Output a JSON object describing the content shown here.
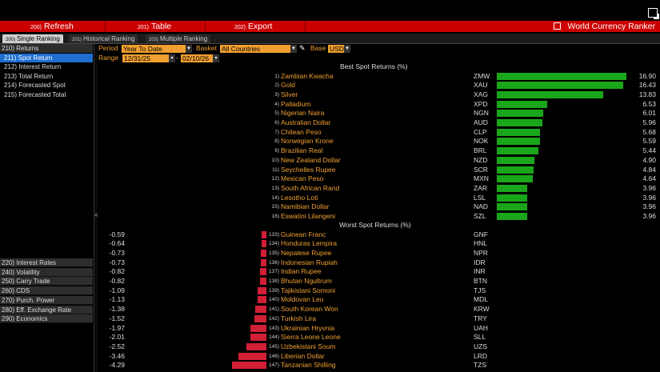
{
  "toolbar": {
    "refresh": {
      "num": "200)",
      "label": "Refresh"
    },
    "table": {
      "num": "201)",
      "label": "Table"
    },
    "export": {
      "num": "202)",
      "label": "Export"
    },
    "title": "World Currency Ranker"
  },
  "tabs": [
    {
      "num": "200)",
      "label": "Single Ranking"
    },
    {
      "num": "201)",
      "label": "Historical Ranking"
    },
    {
      "num": "203)",
      "label": "Multiple Ranking"
    }
  ],
  "sidebar": {
    "top": [
      {
        "label": "210) Returns"
      },
      {
        "label": "211) Spot Return"
      },
      {
        "label": "212) Interest Return"
      },
      {
        "label": "213) Total Return"
      },
      {
        "label": "214) Forecasted Spot"
      },
      {
        "label": "215) Forecasted Total"
      }
    ],
    "bottom": [
      {
        "label": "220) Interest Rates"
      },
      {
        "label": "240) Volatility"
      },
      {
        "label": "250) Carry Trade"
      },
      {
        "label": "260) CDS"
      },
      {
        "label": "270) Purch. Power"
      },
      {
        "label": "280) Eff. Exchange Rate"
      },
      {
        "label": "290) Economics"
      }
    ]
  },
  "controls": {
    "period_label": "Period",
    "period_value": "Year To Date",
    "basket_label": "Basket",
    "basket_value": "All Countries",
    "base_label": "Base",
    "base_value": "USD",
    "range_label": "Range",
    "range_start": "12/31/25",
    "range_sep": "-",
    "range_end": "02/10/26"
  },
  "best_title": "Best Spot Returns (%)",
  "worst_title": "Worst Spot Returns (%)",
  "best": [
    {
      "rank": "1)",
      "name": "Zambian Kwacha",
      "code": "ZMW",
      "value": "16.90",
      "num": 16.9
    },
    {
      "rank": "2)",
      "name": "Gold",
      "code": "XAU",
      "value": "16.43",
      "num": 16.43
    },
    {
      "rank": "3)",
      "name": "Silver",
      "code": "XAG",
      "value": "13.83",
      "num": 13.83
    },
    {
      "rank": "4)",
      "name": "Palladium",
      "code": "XPD",
      "value": "6.53",
      "num": 6.53
    },
    {
      "rank": "5)",
      "name": "Nigerian Naira",
      "code": "NGN",
      "value": "6.01",
      "num": 6.01
    },
    {
      "rank": "6)",
      "name": "Australian Dollar",
      "code": "AUD",
      "value": "5.96",
      "num": 5.96
    },
    {
      "rank": "7)",
      "name": "Chilean Peso",
      "code": "CLP",
      "value": "5.68",
      "num": 5.68
    },
    {
      "rank": "8)",
      "name": "Norwegian Krone",
      "code": "NOK",
      "value": "5.59",
      "num": 5.59
    },
    {
      "rank": "9)",
      "name": "Brazilian Real",
      "code": "BRL",
      "value": "5.44",
      "num": 5.44
    },
    {
      "rank": "10)",
      "name": "New Zealand Dollar",
      "code": "NZD",
      "value": "4.90",
      "num": 4.9
    },
    {
      "rank": "11)",
      "name": "Seychelles Rupee",
      "code": "SCR",
      "value": "4.84",
      "num": 4.84
    },
    {
      "rank": "12)",
      "name": "Mexican Peso",
      "code": "MXN",
      "value": "4.64",
      "num": 4.64
    },
    {
      "rank": "13)",
      "name": "South African Rand",
      "code": "ZAR",
      "value": "3.96",
      "num": 3.96
    },
    {
      "rank": "14)",
      "name": "Lesotho Loti",
      "code": "LSL",
      "value": "3.96",
      "num": 3.96
    },
    {
      "rank": "15)",
      "name": "Namibian Dollar",
      "code": "NAD",
      "value": "3.96",
      "num": 3.96
    },
    {
      "rank": "16)",
      "name": "Eswatini Lilangeni",
      "code": "SZL",
      "value": "3.96",
      "num": 3.96
    }
  ],
  "worst": [
    {
      "rank": "133)",
      "name": "Guinean Franc",
      "code": "GNF",
      "value": "-0.59",
      "num": -0.59
    },
    {
      "rank": "134)",
      "name": "Honduras Lempira",
      "code": "HNL",
      "value": "-0.64",
      "num": -0.64
    },
    {
      "rank": "135)",
      "name": "Nepalese Rupee",
      "code": "NPR",
      "value": "-0.73",
      "num": -0.73
    },
    {
      "rank": "136)",
      "name": "Indonesian Rupiah",
      "code": "IDR",
      "value": "-0.73",
      "num": -0.73
    },
    {
      "rank": "137)",
      "name": "Indian Rupee",
      "code": "INR",
      "value": "-0.82",
      "num": -0.82
    },
    {
      "rank": "138)",
      "name": "Bhutan Ngultrum",
      "code": "BTN",
      "value": "-0.82",
      "num": -0.82
    },
    {
      "rank": "139)",
      "name": "Tajikistani Somoni",
      "code": "TJS",
      "value": "-1.09",
      "num": -1.09
    },
    {
      "rank": "140)",
      "name": "Moldovan Leu",
      "code": "MDL",
      "value": "-1.13",
      "num": -1.13
    },
    {
      "rank": "141)",
      "name": "South Korean Won",
      "code": "KRW",
      "value": "-1.38",
      "num": -1.38
    },
    {
      "rank": "142)",
      "name": "Turkish Lira",
      "code": "TRY",
      "value": "-1.52",
      "num": -1.52
    },
    {
      "rank": "143)",
      "name": "Ukrainian Hryvnia",
      "code": "UAH",
      "value": "-1.97",
      "num": -1.97
    },
    {
      "rank": "144)",
      "name": "Sierra Leone Leone",
      "code": "SLL",
      "value": "-2.01",
      "num": -2.01
    },
    {
      "rank": "145)",
      "name": "Uzbekistani Soum",
      "code": "UZS",
      "value": "-2.52",
      "num": -2.52
    },
    {
      "rank": "146)",
      "name": "Liberian Dollar",
      "code": "LRD",
      "value": "-3.46",
      "num": -3.46
    },
    {
      "rank": "147)",
      "name": "Tanzanian Shilling",
      "code": "TZS",
      "value": "-4.29",
      "num": -4.29
    }
  ],
  "colors": {
    "accent": "#f0a030",
    "positive": "#1aa61a",
    "negative": "#d11f36",
    "toolbar": "#cc0000",
    "selected": "#1f6fd1"
  }
}
